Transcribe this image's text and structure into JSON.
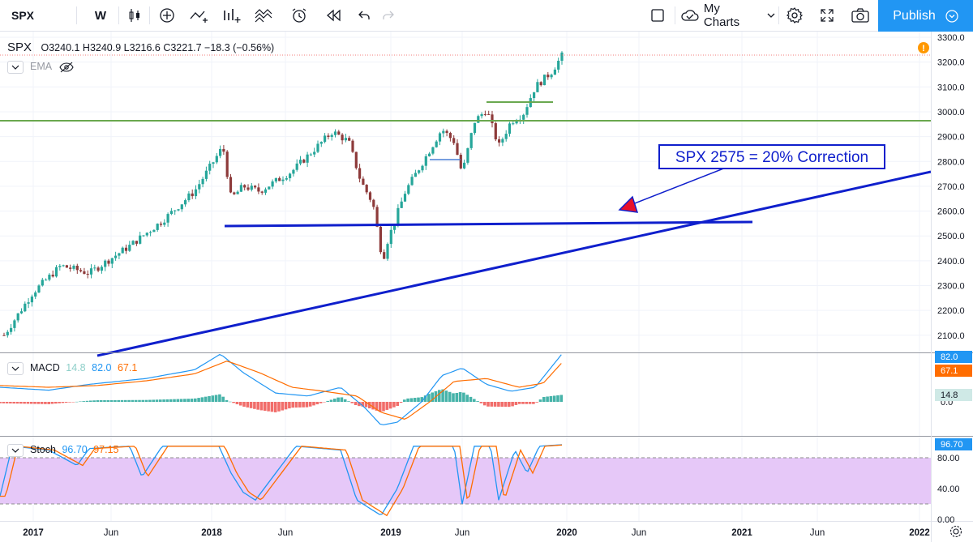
{
  "toolbar": {
    "symbol": "SPX",
    "interval": "W",
    "my_charts": "My Charts",
    "publish": "Publish"
  },
  "legend": {
    "symbol": "SPX",
    "ohlc": "O3240.1 H3240.9 L3216.6 C3221.7 −18.3 (−0.56%)",
    "ema": "EMA",
    "macd_label": "MACD",
    "macd_hist": "14.8",
    "macd_line": "82.0",
    "macd_signal": "67.1",
    "stoch_label": "Stoch",
    "stoch_k": "96.70",
    "stoch_d": "97.15"
  },
  "annotation": {
    "text": "SPX 2575 = 20% Correction"
  },
  "axis_badges": {
    "macd_line": "82.0",
    "macd_signal": "67.1",
    "macd_hist": "14.8",
    "stoch_k": "96.70"
  },
  "colors": {
    "up": "#26a69a",
    "down": "#8d3a3a",
    "trend": "#0f1fcc",
    "support": "#6aa84f",
    "macd": "#2196f3",
    "signal": "#ff6d00",
    "stoch_fill": "#e6c8f8"
  },
  "chart_data": [
    {
      "type": "candlestick",
      "series": [
        {
          "name": "SPX",
          "values": []
        }
      ],
      "ylim": [
        2050,
        3330
      ],
      "y_ticks": [
        "3300.0",
        "3200.0",
        "3100.0",
        "3000.0",
        "2900.0",
        "2800.0",
        "2700.0",
        "2600.0",
        "2500.0",
        "2400.0",
        "2300.0",
        "2200.0",
        "2100.0"
      ],
      "x_ticks": [
        "2017",
        "Jun",
        "2018",
        "Jun",
        "2019",
        "Jun",
        "2020",
        "Jun",
        "2021",
        "Jun",
        "2022"
      ],
      "levels": [
        2960,
        3030,
        2540
      ]
    },
    {
      "type": "line",
      "ylim": [
        -40,
        95
      ],
      "y_ticks": [
        "0.0"
      ]
    },
    {
      "type": "line",
      "ylim": [
        -5,
        105
      ],
      "y_ticks": [
        "80.00",
        "40.00",
        "0.00"
      ],
      "bands": [
        20,
        80
      ]
    }
  ]
}
